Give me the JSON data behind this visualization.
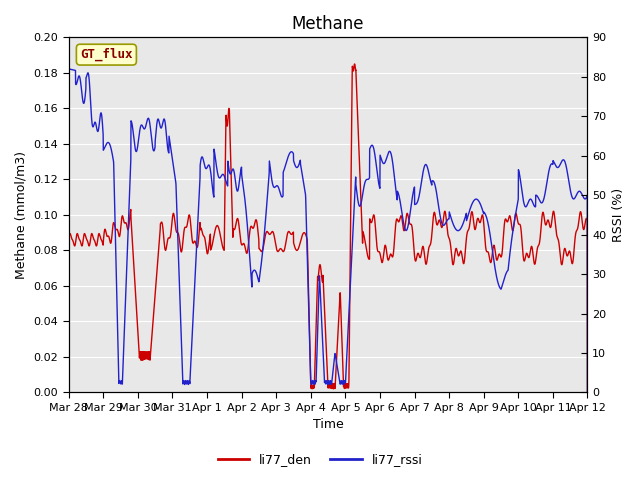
{
  "title": "Methane",
  "xlabel": "Time",
  "ylabel_left": "Methane (mmol/m3)",
  "ylabel_right": "RSSI (%)",
  "legend_label": "GT_flux",
  "series1_label": "li77_den",
  "series2_label": "li77_rssi",
  "series1_color": "#cc0000",
  "series2_color": "#2222cc",
  "ylim_left": [
    0.0,
    0.2
  ],
  "ylim_right": [
    0,
    90
  ],
  "yticks_left": [
    0.0,
    0.02,
    0.04,
    0.06,
    0.08,
    0.1,
    0.12,
    0.14,
    0.16,
    0.18,
    0.2
  ],
  "yticks_right": [
    0,
    10,
    20,
    30,
    40,
    50,
    60,
    70,
    80,
    90
  ],
  "xtick_labels": [
    "Mar 28",
    "Mar 29",
    "Mar 30",
    "Mar 31",
    "Apr 1",
    "Apr 2",
    "Apr 3",
    "Apr 4",
    "Apr 5",
    "Apr 6",
    "Apr 7",
    "Apr 8",
    "Apr 9",
    "Apr 10",
    "Apr 11",
    "Apr 12"
  ],
  "background_color": "#e8e8e8",
  "title_fontsize": 12,
  "axis_label_fontsize": 9,
  "tick_fontsize": 8,
  "legend_box_facecolor": "#ffffcc",
  "legend_box_edge": "#999900",
  "linewidth": 1.0
}
